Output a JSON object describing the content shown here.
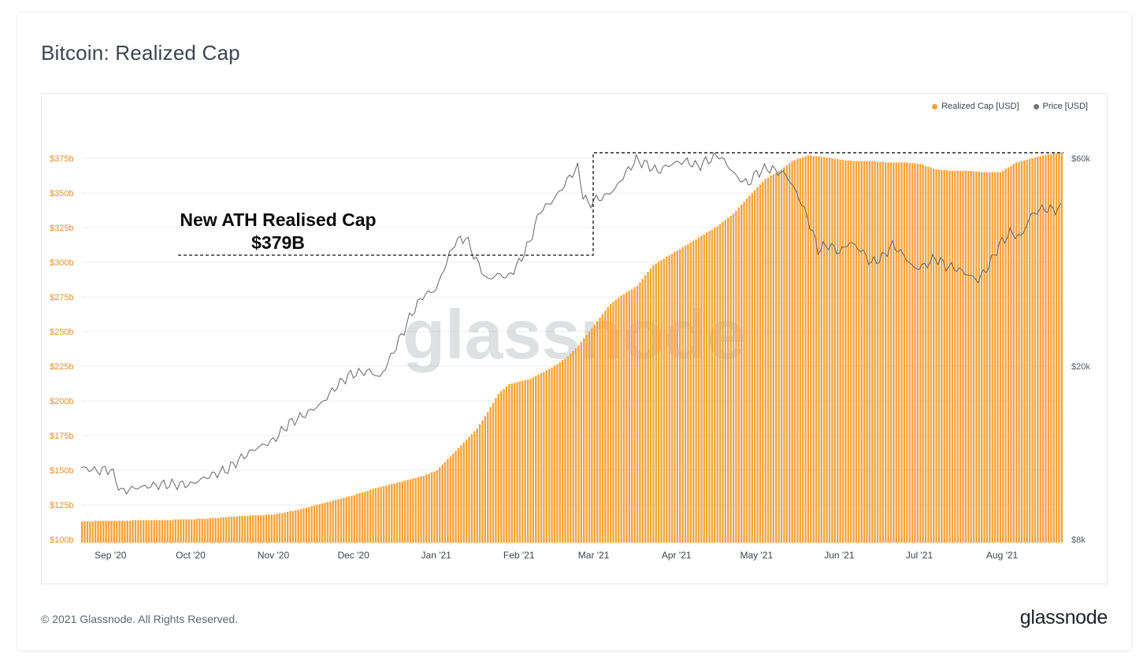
{
  "title": "Bitcoin: Realized Cap",
  "legend": [
    {
      "label": "Realized Cap [USD]",
      "color": "#f4a33b"
    },
    {
      "label": "Price [USD]",
      "color": "#777777"
    }
  ],
  "annotation": {
    "line1": "New ATH Realised Cap",
    "line2": "$379B"
  },
  "watermark": "glassnode",
  "footer": {
    "copyright": "© 2021 Glassnode. All Rights Reserved.",
    "logo": "glassnode"
  },
  "colors": {
    "bar": "#f4a33b",
    "price": "#666666",
    "grid": "#eceef1",
    "left_axis": "#e0922f"
  },
  "chart_data": {
    "type": "bar",
    "title": "Bitcoin: Realized Cap",
    "x_range": [
      "2020-08-21",
      "2021-08-13"
    ],
    "x_ticks": [
      {
        "label": "Sep '20",
        "day": 11
      },
      {
        "label": "Oct '20",
        "day": 41
      },
      {
        "label": "Nov '20",
        "day": 72
      },
      {
        "label": "Dec '20",
        "day": 102
      },
      {
        "label": "Jan '21",
        "day": 133
      },
      {
        "label": "Feb '21",
        "day": 164
      },
      {
        "label": "Mar '21",
        "day": 192
      },
      {
        "label": "Apr '21",
        "day": 223
      },
      {
        "label": "May '21",
        "day": 253
      },
      {
        "label": "Jun '21",
        "day": 284
      },
      {
        "label": "Jul '21",
        "day": 314
      },
      {
        "label": "Aug '21",
        "day": 345
      }
    ],
    "y_left": {
      "label": "Realized Cap [USD]",
      "ylim": [
        100,
        380
      ],
      "ticks": [
        {
          "v": 100,
          "label": "$100b"
        },
        {
          "v": 125,
          "label": "$125b"
        },
        {
          "v": 150,
          "label": "$150b"
        },
        {
          "v": 175,
          "label": "$175b"
        },
        {
          "v": 200,
          "label": "$200b"
        },
        {
          "v": 225,
          "label": "$225b"
        },
        {
          "v": 250,
          "label": "$250b"
        },
        {
          "v": 275,
          "label": "$275b"
        },
        {
          "v": 300,
          "label": "$300b"
        },
        {
          "v": 325,
          "label": "$325b"
        },
        {
          "v": 350,
          "label": "$350b"
        },
        {
          "v": 375,
          "label": "$375b"
        }
      ]
    },
    "y_right": {
      "label": "Price [USD]",
      "scale": "log",
      "ticks": [
        {
          "v": 8000,
          "label": "$8k"
        },
        {
          "v": 20000,
          "label": "$20k"
        },
        {
          "v": 60000,
          "label": "$60k"
        }
      ]
    },
    "series": [
      {
        "name": "Realized Cap [USD]",
        "type": "bar",
        "anchors_day_value": [
          [
            0,
            113
          ],
          [
            10,
            113.5
          ],
          [
            20,
            113.8
          ],
          [
            30,
            114
          ],
          [
            40,
            114.5
          ],
          [
            50,
            115.5
          ],
          [
            60,
            117
          ],
          [
            72,
            118
          ],
          [
            80,
            121
          ],
          [
            90,
            126
          ],
          [
            100,
            131
          ],
          [
            110,
            137
          ],
          [
            120,
            142
          ],
          [
            128,
            146
          ],
          [
            133,
            150
          ],
          [
            138,
            160
          ],
          [
            143,
            170
          ],
          [
            148,
            180
          ],
          [
            152,
            192
          ],
          [
            156,
            205
          ],
          [
            160,
            212
          ],
          [
            168,
            216
          ],
          [
            176,
            224
          ],
          [
            182,
            232
          ],
          [
            186,
            240
          ],
          [
            190,
            250
          ],
          [
            194,
            260
          ],
          [
            198,
            270
          ],
          [
            202,
            276
          ],
          [
            208,
            283
          ],
          [
            214,
            298
          ],
          [
            220,
            305
          ],
          [
            226,
            312
          ],
          [
            232,
            319
          ],
          [
            238,
            326
          ],
          [
            244,
            335
          ],
          [
            250,
            348
          ],
          [
            256,
            360
          ],
          [
            262,
            367
          ],
          [
            266,
            373
          ],
          [
            272,
            377
          ],
          [
            278,
            376
          ],
          [
            284,
            374
          ],
          [
            290,
            373
          ],
          [
            296,
            373
          ],
          [
            302,
            372
          ],
          [
            308,
            372
          ],
          [
            314,
            371
          ],
          [
            320,
            367
          ],
          [
            326,
            366
          ],
          [
            332,
            366
          ],
          [
            338,
            365
          ],
          [
            344,
            365
          ],
          [
            350,
            372
          ],
          [
            356,
            375
          ],
          [
            362,
            378
          ],
          [
            367,
            379
          ]
        ]
      },
      {
        "name": "Price [USD]",
        "type": "line",
        "anchors_day_value": [
          [
            0,
            11700
          ],
          [
            6,
            11500
          ],
          [
            11,
            11600
          ],
          [
            15,
            10300
          ],
          [
            20,
            10500
          ],
          [
            30,
            10700
          ],
          [
            41,
            10700
          ],
          [
            45,
            11000
          ],
          [
            50,
            11300
          ],
          [
            55,
            11600
          ],
          [
            60,
            12300
          ],
          [
            65,
            12900
          ],
          [
            72,
            13500
          ],
          [
            78,
            14800
          ],
          [
            84,
            15500
          ],
          [
            90,
            16400
          ],
          [
            95,
            17800
          ],
          [
            100,
            19000
          ],
          [
            102,
            19200
          ],
          [
            108,
            19500
          ],
          [
            112,
            18800
          ],
          [
            116,
            21000
          ],
          [
            120,
            23500
          ],
          [
            124,
            26500
          ],
          [
            128,
            29000
          ],
          [
            133,
            30000
          ],
          [
            136,
            33500
          ],
          [
            140,
            38500
          ],
          [
            144,
            39500
          ],
          [
            148,
            35000
          ],
          [
            152,
            31500
          ],
          [
            156,
            32500
          ],
          [
            160,
            32000
          ],
          [
            164,
            34500
          ],
          [
            168,
            38500
          ],
          [
            172,
            45500
          ],
          [
            176,
            47500
          ],
          [
            180,
            51000
          ],
          [
            184,
            55500
          ],
          [
            186,
            57000
          ],
          [
            188,
            49500
          ],
          [
            190,
            47000
          ],
          [
            192,
            48000
          ],
          [
            196,
            49000
          ],
          [
            200,
            51000
          ],
          [
            204,
            55500
          ],
          [
            208,
            59500
          ],
          [
            212,
            58000
          ],
          [
            216,
            56000
          ],
          [
            220,
            57800
          ],
          [
            223,
            58700
          ],
          [
            227,
            59000
          ],
          [
            231,
            57500
          ],
          [
            235,
            59500
          ],
          [
            239,
            61000
          ],
          [
            242,
            58000
          ],
          [
            246,
            54000
          ],
          [
            250,
            52500
          ],
          [
            253,
            55500
          ],
          [
            257,
            57000
          ],
          [
            261,
            56000
          ],
          [
            264,
            55000
          ],
          [
            268,
            50000
          ],
          [
            272,
            44000
          ],
          [
            276,
            37000
          ],
          [
            280,
            38000
          ],
          [
            284,
            36500
          ],
          [
            288,
            38500
          ],
          [
            292,
            37000
          ],
          [
            296,
            34500
          ],
          [
            300,
            35500
          ],
          [
            304,
            38000
          ],
          [
            308,
            36000
          ],
          [
            312,
            33500
          ],
          [
            316,
            34000
          ],
          [
            320,
            35500
          ],
          [
            324,
            34000
          ],
          [
            328,
            33500
          ],
          [
            332,
            32500
          ],
          [
            336,
            31500
          ],
          [
            340,
            34000
          ],
          [
            344,
            38000
          ],
          [
            348,
            40500
          ],
          [
            352,
            39500
          ],
          [
            356,
            44500
          ],
          [
            360,
            46000
          ],
          [
            364,
            45800
          ],
          [
            367,
            46000
          ]
        ]
      }
    ],
    "annotations": [
      {
        "text": "New ATH Realised Cap $379B",
        "value": 379,
        "type": "dashed-box"
      }
    ]
  }
}
